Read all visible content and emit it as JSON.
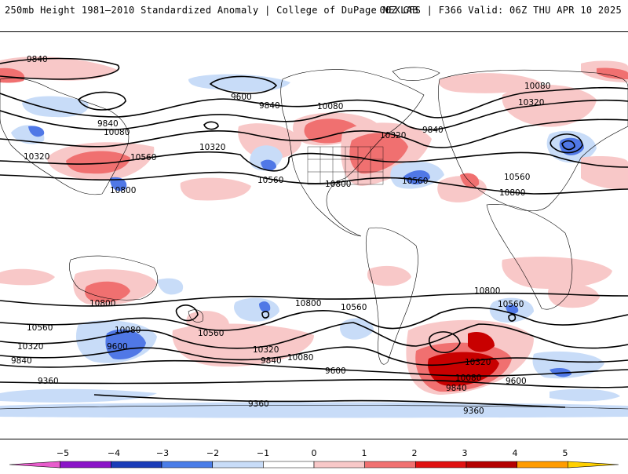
{
  "header": {
    "title": "250mb Height 1981–2010 Standardized Anomaly | College of DuPage NEXLAB",
    "run_info": "00Z GFS | F366 Valid: 06Z THU APR 10 2025"
  },
  "map": {
    "contour_labels": [
      "9840",
      "9600",
      "9840",
      "10080",
      "9840",
      "10080",
      "10320",
      "10560",
      "10320",
      "10800",
      "10320",
      "10080",
      "10320",
      "9840",
      "10080",
      "10320",
      "10560",
      "10800",
      "10560",
      "10800",
      "10560",
      "10800",
      "10560",
      "10080",
      "10320",
      "9600",
      "9840",
      "10560",
      "10320",
      "10080",
      "9840",
      "10800",
      "10560",
      "10080",
      "10320",
      "10080",
      "9840",
      "9600",
      "9360",
      "9360",
      "9600",
      "9360",
      "10320",
      "10080",
      "9840",
      "10560"
    ],
    "colors": {
      "positive_1": "#f8c8c8",
      "positive_2": "#f07070",
      "positive_3": "#c80000",
      "negative_1": "#c8dcf8",
      "negative_2": "#5078e6",
      "contour": "#000000",
      "land_lines": "#000000"
    }
  },
  "colorbar": {
    "ticks": [
      "−5",
      "−4",
      "−3",
      "−2",
      "−1",
      "0",
      "1",
      "2",
      "3",
      "4",
      "5"
    ],
    "segment_colors": [
      "#e85ccc",
      "#8a14c8",
      "#1a3cb8",
      "#4a7de8",
      "#c8dcf8",
      "#ffffff",
      "#f8c8c8",
      "#f07070",
      "#e01010",
      "#b40000",
      "#ff9c00",
      "#ffd000"
    ]
  }
}
